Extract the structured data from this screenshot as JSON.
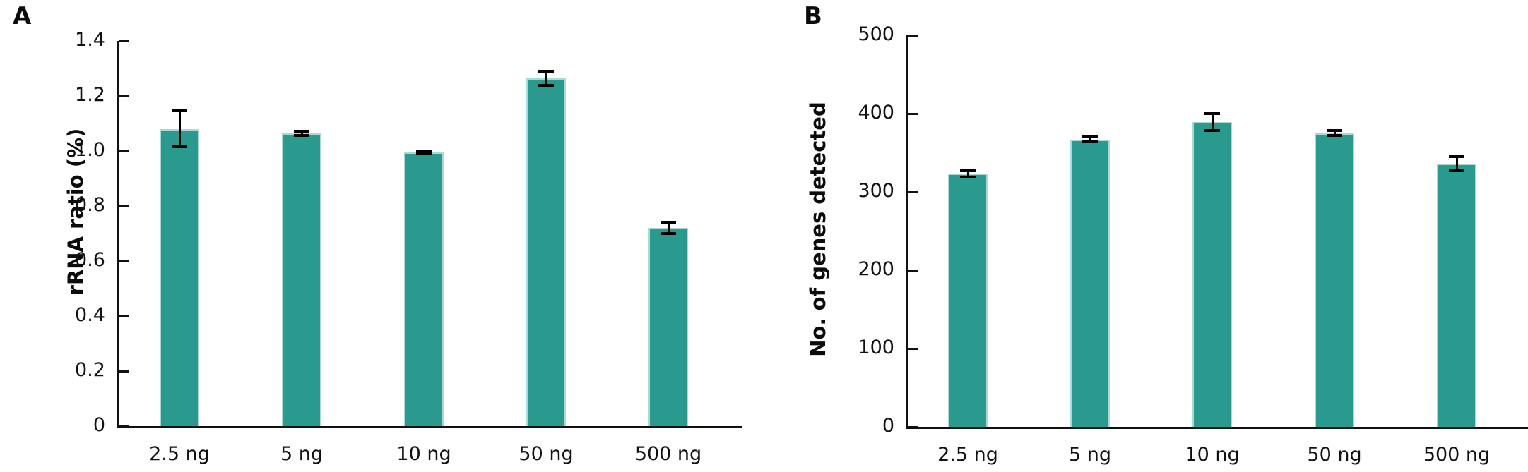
{
  "figure_title": "",
  "chart_data": [
    {
      "type": "bar",
      "panel_label": "A",
      "title": "",
      "xlabel": "",
      "ylabel": "rRNA ratio (%)",
      "categories": [
        "2.5 ng",
        "5 ng",
        "10 ng",
        "50 ng",
        "500 ng"
      ],
      "values": [
        1.08,
        1.065,
        0.995,
        1.265,
        0.72
      ],
      "errors": [
        0.065,
        0.008,
        0.005,
        0.026,
        0.02
      ],
      "ylim": [
        0,
        1.4
      ],
      "ytick_step": 0.2,
      "yticks": [
        "0",
        "0.2",
        "0.4",
        "0.6",
        "0.8",
        "1.0",
        "1.2",
        "1.4"
      ],
      "grid": "off",
      "legend": "none",
      "bar_color": "#2a9a8e",
      "bar_edge_color": "#abdad4",
      "error_bar_color": "#000000",
      "axis_color": "#111111"
    },
    {
      "type": "bar",
      "panel_label": "B",
      "title": "",
      "xlabel": "",
      "ylabel": "No. of genes detected",
      "categories": [
        "2.5 ng",
        "5 ng",
        "10 ng",
        "50 ng",
        "500 ng"
      ],
      "values": [
        323,
        367,
        389,
        375,
        336
      ],
      "errors": [
        4,
        3,
        11,
        3,
        9
      ],
      "ylim": [
        0,
        500
      ],
      "ytick_step": 100,
      "yticks": [
        "0",
        "100",
        "200",
        "300",
        "400",
        "500"
      ],
      "grid": "off",
      "legend": "none",
      "bar_color": "#2a9a8e",
      "bar_edge_color": "#abdad4",
      "error_bar_color": "#000000",
      "axis_color": "#111111"
    }
  ]
}
